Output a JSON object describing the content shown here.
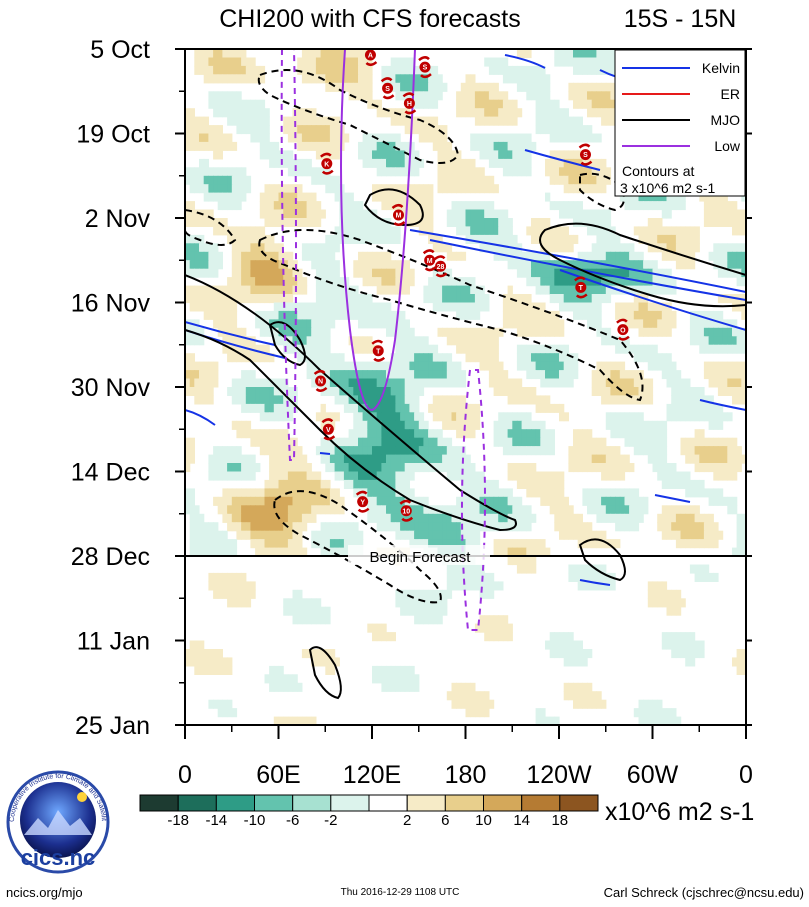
{
  "chart_data": {
    "type": "heatmap",
    "title": "CHI200 with CFS forecasts",
    "region_label": "15S - 15N",
    "y_ticks": [
      "5 Oct",
      "19 Oct",
      "2 Nov",
      "16 Nov",
      "30 Nov",
      "14 Dec",
      "28 Dec",
      "11 Jan",
      "25 Jan"
    ],
    "x_ticks": [
      "0",
      "60E",
      "120E",
      "180",
      "120W",
      "60W",
      "0"
    ],
    "x_range": [
      0,
      360
    ],
    "y_range_days": [
      0,
      112
    ],
    "begin_forecast_day": 84,
    "begin_forecast_label": "Begin Forecast",
    "colorbar_labels": [
      "-18",
      "-14",
      "-10",
      "-6",
      "-2",
      "2",
      "6",
      "10",
      "14",
      "18"
    ],
    "colorbar_colors": [
      "#1d3b31",
      "#1d6e5b",
      "#2e9c86",
      "#63c3ae",
      "#a7e1d1",
      "#dcf3ec",
      "#ffffff",
      "#f6ebc7",
      "#e8cf8c",
      "#d4a85a",
      "#b57b33",
      "#8c5520"
    ],
    "units": "x10^6 m2 s-1",
    "legend": [
      {
        "name": "Kelvin",
        "color": "#1533e6"
      },
      {
        "name": "ER",
        "color": "#e61a1a"
      },
      {
        "name": "MJO",
        "color": "#000000"
      },
      {
        "name": "Low",
        "color": "#9b30e0"
      }
    ],
    "contour_note_line1": "Contours at",
    "contour_note_line2": "3 x10^6 m2 s-1",
    "storm_markers": [
      {
        "label": "A",
        "lon": 119,
        "day": 1
      },
      {
        "label": "S",
        "lon": 154,
        "day": 3
      },
      {
        "label": "S",
        "lon": 130,
        "day": 6.5
      },
      {
        "label": "H",
        "lon": 144,
        "day": 9
      },
      {
        "label": "S",
        "lon": 257,
        "day": 17.5
      },
      {
        "label": "K",
        "lon": 91,
        "day": 19
      },
      {
        "label": "M",
        "lon": 137,
        "day": 27.5
      },
      {
        "label": "M",
        "lon": 157,
        "day": 35
      },
      {
        "label": "28",
        "lon": 164,
        "day": 36
      },
      {
        "label": "T",
        "lon": 254,
        "day": 39.5
      },
      {
        "label": "O",
        "lon": 281,
        "day": 46.5
      },
      {
        "label": "T",
        "lon": 124,
        "day": 50
      },
      {
        "label": "N",
        "lon": 87,
        "day": 55
      },
      {
        "label": "V",
        "lon": 92,
        "day": 63
      },
      {
        "label": "Y",
        "lon": 114,
        "day": 75
      },
      {
        "label": "10",
        "lon": 142,
        "day": 76.5
      }
    ]
  },
  "footer": {
    "logo_text": "cics.nc",
    "logo_ring_text": "Cooperative Institute for Climate and Satellites",
    "left": "ncics.org/mjo",
    "center": "Thu 2016-12-29 1108 UTC",
    "right": "Carl Schreck (cjschrec@ncsu.edu)"
  }
}
